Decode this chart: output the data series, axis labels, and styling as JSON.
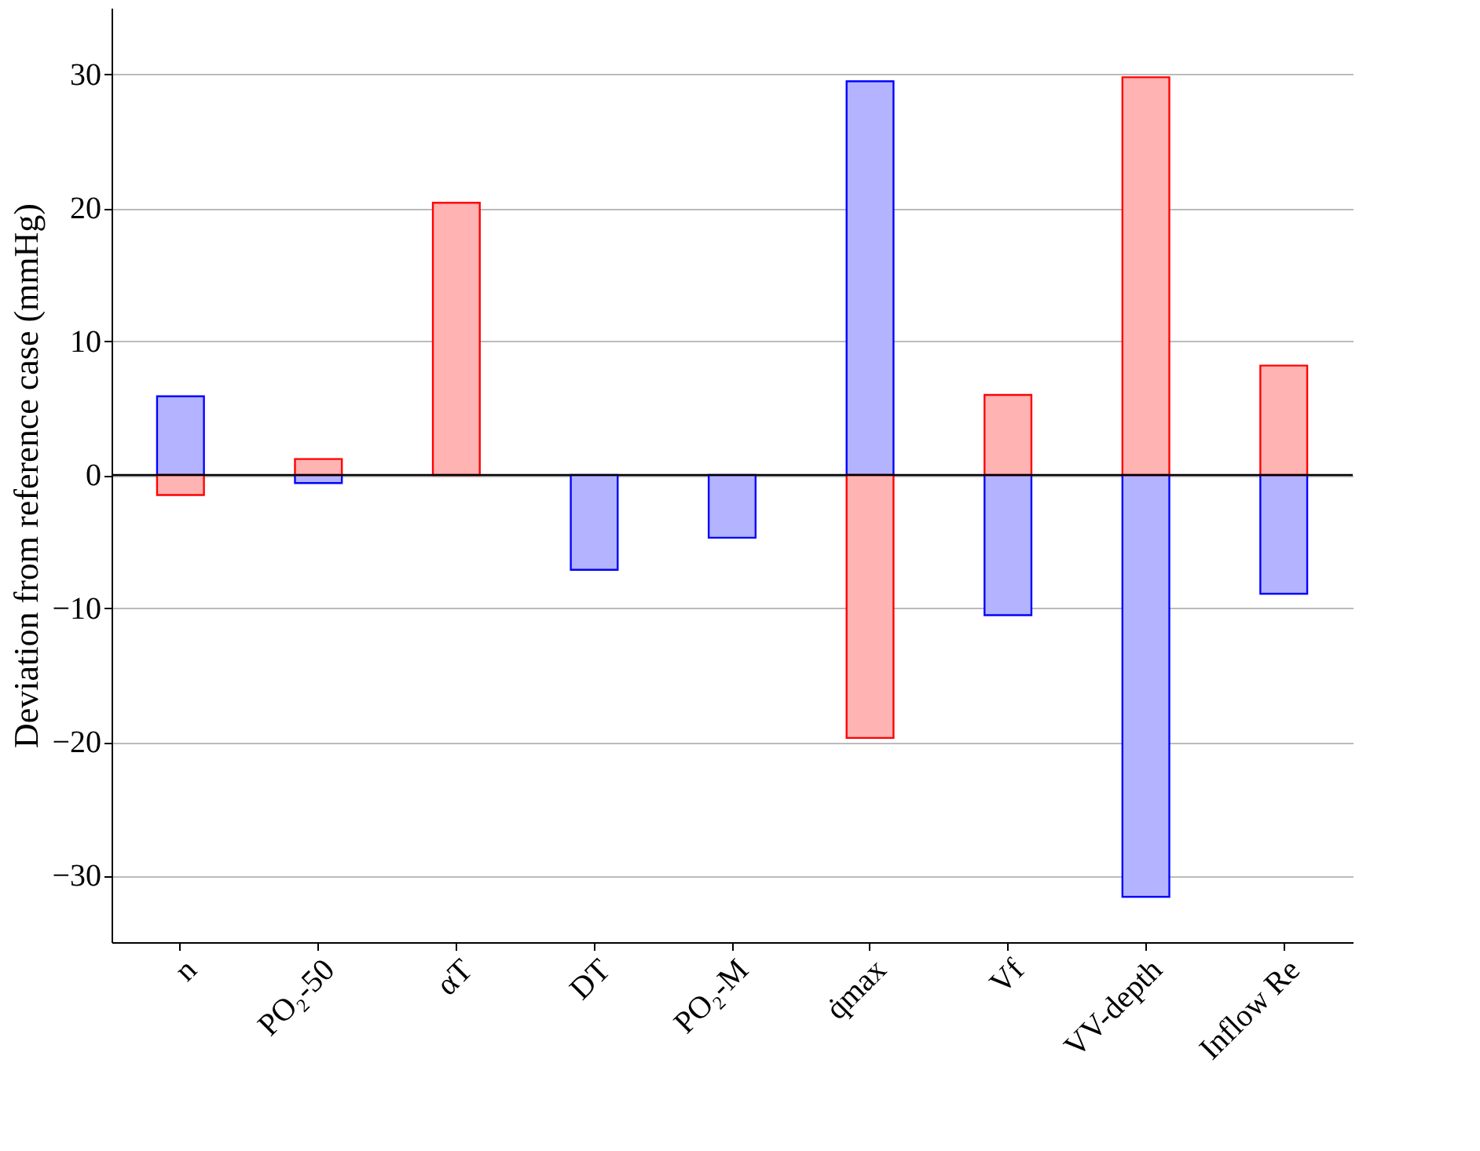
{
  "chart_data": {
    "type": "bar",
    "ylabel": "Deviation from reference case (mmHg)",
    "stacked": true,
    "categories": [
      "n",
      "PO₂-50",
      "αT",
      "DT",
      "PO₂-M",
      "q̇max",
      "Vf",
      "VV-depth",
      "Inflow Re"
    ],
    "series": [
      {
        "color": "#b3b3ff",
        "values": [
          5.9,
          -0.6,
          null,
          -7.1,
          -4.7,
          29.5,
          -10.5,
          -31.6,
          -8.9
        ]
      },
      {
        "color": "#ffb3b3",
        "values": [
          -1.5,
          1.2,
          20.4,
          null,
          null,
          -19.7,
          6.0,
          29.8,
          8.2
        ]
      }
    ],
    "ylim": [
      -35,
      35
    ],
    "yticks": [
      -30,
      -20,
      -10,
      0,
      10,
      20,
      30
    ],
    "grid": "y",
    "ref_lines": [
      {
        "axis": "y",
        "value": 0,
        "color": "#000000"
      }
    ]
  }
}
